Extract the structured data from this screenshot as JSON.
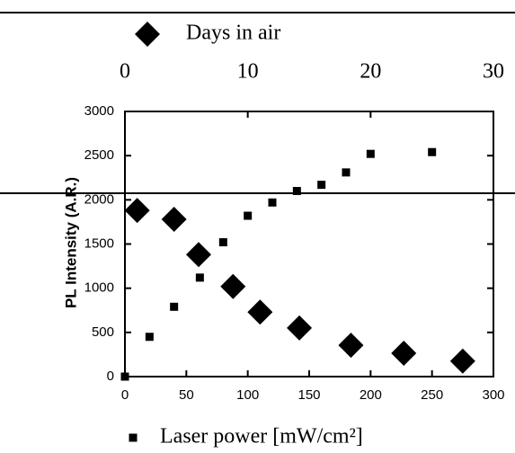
{
  "chart_data": {
    "type": "scatter",
    "y_label": "PL Intensity (A.R.)",
    "xlim": [
      0,
      300
    ],
    "xticks": [
      0,
      50,
      100,
      150,
      200,
      250,
      300
    ],
    "x2lim": [
      0,
      30
    ],
    "x2ticks": [
      0,
      10,
      20,
      30
    ],
    "ylim": [
      0,
      3000
    ],
    "yticks": [
      0,
      500,
      1000,
      1500,
      2000,
      2500,
      3000
    ],
    "series": [
      {
        "name": "Laser power [mW/cm²]",
        "marker": "square",
        "color": "#000000",
        "x": [
          0,
          20,
          40,
          61,
          80,
          100,
          120,
          140,
          160,
          180,
          200,
          250
        ],
        "values": [
          0,
          450,
          790,
          1120,
          1520,
          1820,
          1970,
          2100,
          2170,
          2310,
          2520,
          2540
        ]
      },
      {
        "name": "Days in air",
        "marker": "diamond",
        "color": "#000000",
        "axis": "x2",
        "x": [
          1,
          4,
          6,
          8.8,
          11,
          14.2,
          18.4,
          22.7,
          27.5
        ],
        "values": [
          1880,
          1780,
          1380,
          1020,
          730,
          550,
          355,
          265,
          175
        ]
      }
    ]
  }
}
